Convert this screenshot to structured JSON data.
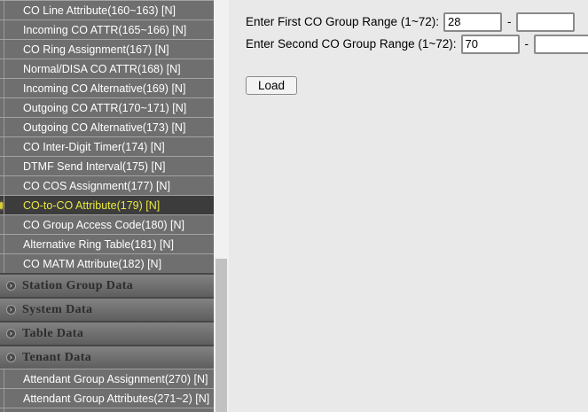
{
  "sidebar": {
    "menu": [
      {
        "type": "item",
        "label": "CO Line Attribute(160~163) [N]"
      },
      {
        "type": "item",
        "label": "Incoming CO ATTR(165~166) [N]"
      },
      {
        "type": "item",
        "label": "CO Ring Assignment(167) [N]"
      },
      {
        "type": "item",
        "label": "Normal/DISA CO ATTR(168) [N]"
      },
      {
        "type": "item",
        "label": "Incoming CO Alternative(169) [N]"
      },
      {
        "type": "item",
        "label": "Outgoing CO ATTR(170~171) [N]"
      },
      {
        "type": "item",
        "label": "Outgoing CO Alternative(173) [N]"
      },
      {
        "type": "item",
        "label": "CO Inter-Digit Timer(174) [N]"
      },
      {
        "type": "item",
        "label": "DTMF Send Interval(175) [N]"
      },
      {
        "type": "item",
        "label": "CO COS Assignment(177) [N]"
      },
      {
        "type": "item",
        "label": "CO-to-CO Attribute(179) [N]",
        "selected": true
      },
      {
        "type": "item",
        "label": "CO Group Access Code(180) [N]"
      },
      {
        "type": "item",
        "label": "Alternative Ring Table(181) [N]"
      },
      {
        "type": "item",
        "label": "CO MATM Attribute(182) [N]"
      },
      {
        "type": "section",
        "label": "Station Group Data"
      },
      {
        "type": "section",
        "label": "System Data"
      },
      {
        "type": "section",
        "label": "Table Data"
      },
      {
        "type": "section",
        "label": "Tenant Data"
      },
      {
        "type": "item",
        "label": "Attendant Group Assignment(270) [N]"
      },
      {
        "type": "item",
        "label": "Attendant Group Attributes(271~2) [N]"
      },
      {
        "type": "item",
        "label": ""
      }
    ],
    "section_chevron": "›"
  },
  "content": {
    "rows": [
      {
        "label": "Enter First CO Group Range (1~72):",
        "value_start": "28",
        "value_end": "",
        "dash": "-"
      },
      {
        "label": "Enter Second CO Group Range (1~72):",
        "value_start": "70",
        "value_end": "",
        "dash": "-"
      }
    ],
    "load_button": "Load"
  },
  "colors": {
    "sidebar_bg": "#6f6f6f",
    "selected_bg": "#3c3c3c",
    "selected_text": "#e9e93f",
    "section_text": "#2d2d2d",
    "content_bg": "#e9e9e9",
    "scroll_track": "#f1f1f1",
    "scroll_thumb": "#c1c1c1"
  }
}
